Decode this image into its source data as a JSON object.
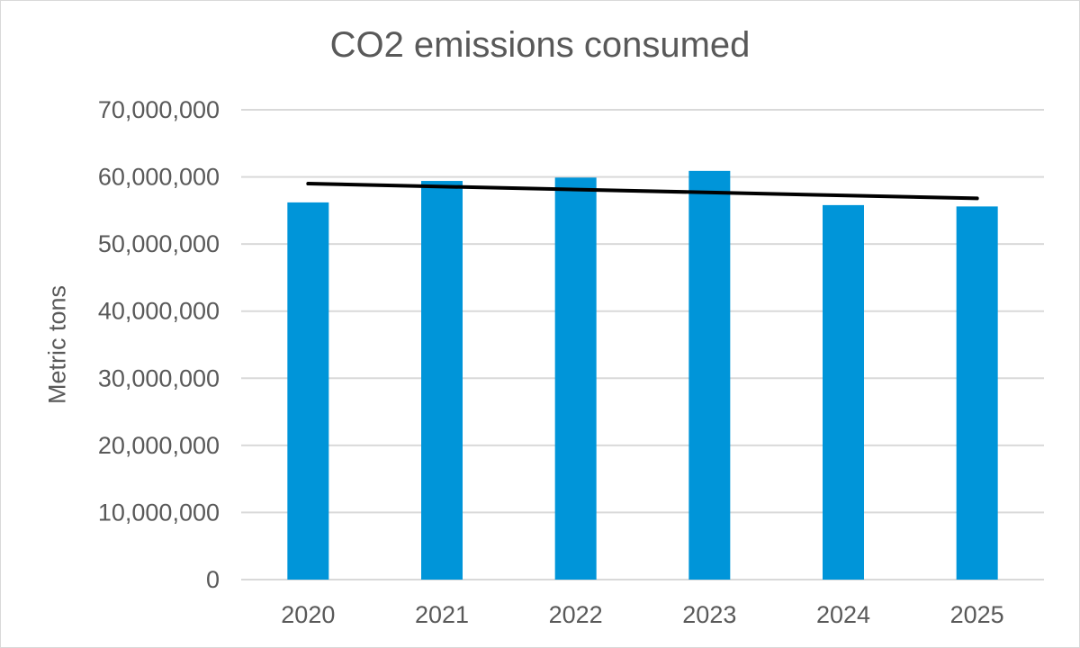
{
  "chart_data": {
    "type": "bar",
    "title": "CO2 emissions consumed",
    "xlabel": "",
    "ylabel": "Metric tons",
    "categories": [
      "2020",
      "2021",
      "2022",
      "2023",
      "2024",
      "2025"
    ],
    "values": [
      56200000,
      59400000,
      59900000,
      60900000,
      55800000,
      55600000
    ],
    "ylim": [
      0,
      70000000
    ],
    "y_ticks": [
      0,
      10000000,
      20000000,
      30000000,
      40000000,
      50000000,
      60000000,
      70000000
    ],
    "y_tick_labels": [
      "0",
      "10,000,000",
      "20,000,000",
      "30,000,000",
      "40,000,000",
      "50,000,000",
      "60,000,000",
      "70,000,000"
    ],
    "grid": true,
    "legend": "none",
    "trendline": {
      "type": "linear",
      "start_value": 59000000,
      "end_value": 56800000
    },
    "colors": {
      "bar": "#0095d9",
      "trendline": "#000000",
      "grid": "#d9d9d9",
      "text": "#595959"
    }
  }
}
